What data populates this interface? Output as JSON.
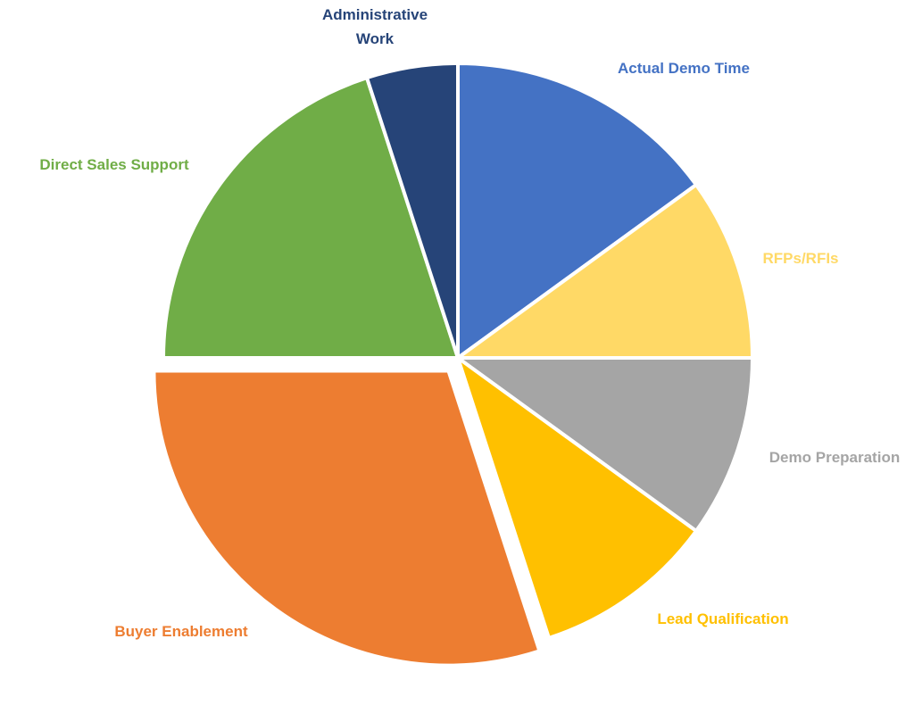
{
  "chart_data": {
    "type": "pie",
    "title": "",
    "slices": [
      {
        "label": "Actual Demo Time",
        "value": 15,
        "color": "#4472C4"
      },
      {
        "label": "RFPs/RFIs",
        "value": 10,
        "color": "#FFD966"
      },
      {
        "label": "Demo Preparation",
        "value": 10,
        "color": "#A5A5A5"
      },
      {
        "label": "Lead Qualification",
        "value": 10,
        "color": "#FFC000"
      },
      {
        "label": "Buyer Enablement",
        "value": 30,
        "color": "#ED7D31"
      },
      {
        "label": "Direct Sales Support",
        "value": 20,
        "color": "#70AD47"
      },
      {
        "label": "Administrative Work",
        "value": 5,
        "color": "#264478"
      }
    ],
    "exploded": [
      "Buyer Enablement"
    ],
    "start_angle": "12 o'clock",
    "direction": "clockwise",
    "legend": "none",
    "data_labels": "category name outside slice, colored to match slice"
  }
}
